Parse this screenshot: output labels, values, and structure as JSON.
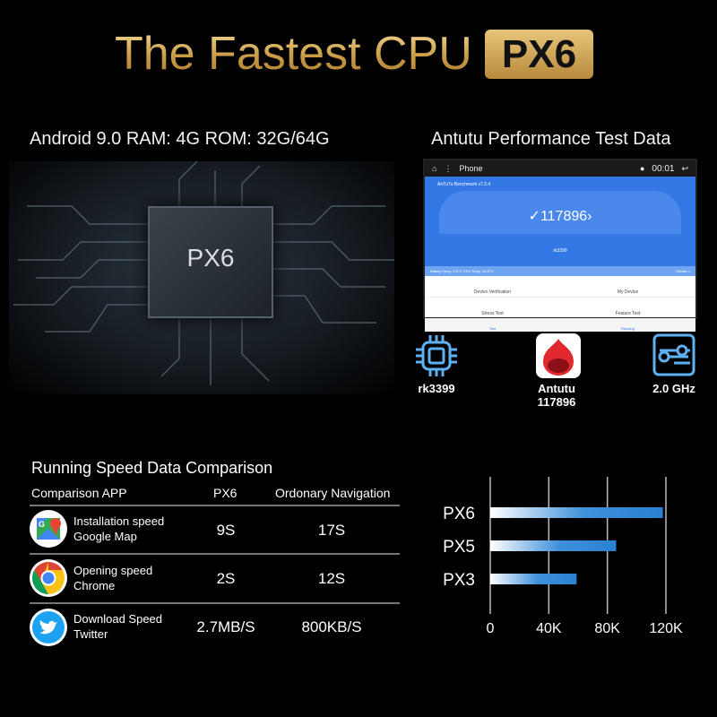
{
  "header": {
    "title": "The Fastest CPU",
    "badge": "PX6"
  },
  "left_panel": {
    "specs": "Android 9.0 RAM: 4G   ROM: 32G/64G",
    "chip_label": "PX6"
  },
  "right_panel": {
    "title": "Antutu Performance Test Data",
    "screen": {
      "status_app": "Phone",
      "time": "00:01",
      "app_name": "AnTuTu Benchmark v7.2.4",
      "score": "117896",
      "device": "rk3399",
      "temp": "Battery Temp: 2.0°C   CPU Temp: 42.0°C",
      "details": "Details >",
      "menu": [
        "Device Verification",
        "My Device",
        "Stress Test",
        "Feature Test"
      ],
      "nav": [
        "Test",
        "Ranking"
      ]
    },
    "icons": [
      {
        "icon": "cpu-chip-icon",
        "label": "rk3399",
        "sub": ""
      },
      {
        "icon": "antutu-icon",
        "label": "Antutu",
        "sub": "117896"
      },
      {
        "icon": "frequency-icon",
        "label": "2.0 GHz",
        "sub": ""
      }
    ]
  },
  "comparison": {
    "title": "Running Speed Data Comparison",
    "headers": [
      "Comparison APP",
      "PX6",
      "Ordonary Navigation"
    ],
    "rows": [
      {
        "icon": "google-maps-icon",
        "line1": "Installation speed",
        "line2": "Google Map",
        "px6": "9S",
        "ordinary": "17S"
      },
      {
        "icon": "chrome-icon",
        "line1": "Opening speed",
        "line2": "Chrome",
        "px6": "2S",
        "ordinary": "12S"
      },
      {
        "icon": "twitter-icon",
        "line1": "Download Speed",
        "line2": "Twitter",
        "px6": "2.7MB/S",
        "ordinary": "800KB/S"
      }
    ]
  },
  "chart_data": {
    "type": "bar",
    "orientation": "horizontal",
    "categories": [
      "PX6",
      "PX5",
      "PX3"
    ],
    "values": [
      117896,
      86000,
      59000
    ],
    "xlim": [
      0,
      120000
    ],
    "xticks": [
      "0",
      "40K",
      "80K",
      "120K"
    ],
    "grid": true,
    "bar_color": "#2f86d6"
  }
}
